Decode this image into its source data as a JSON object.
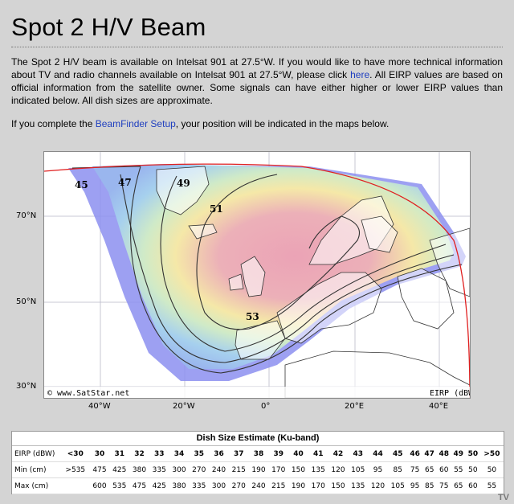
{
  "page": {
    "title": "Spot 2 H/V Beam",
    "intro_1": "The Spot 2 H/V beam is available on Intelsat 901 at 27.5°W. If you would like to have more technical information about TV and radio channels available on Intelsat 901 at 27.5°W, please click ",
    "intro_link": "here",
    "intro_2": ". All EIRP values are based on official information from the satellite owner. Some signals can have either higher or lower EIRP values than indicated below. All dish sizes are approximate.",
    "setup_1": "If you complete the ",
    "setup_link": "BeamFinder Setup",
    "setup_2": ", your position will be indicated in the maps below."
  },
  "map": {
    "copyright": "© www.SatStar.net",
    "legend_unit": "EIRP (dBW)",
    "contours": [
      "45",
      "47",
      "49",
      "51",
      "53"
    ],
    "lat_labels": [
      "70°N",
      "50°N",
      "30°N"
    ],
    "lon_labels": [
      "40°W",
      "20°W",
      "0°",
      "20°E",
      "40°E"
    ],
    "colors": {
      "outer": "#8c8ff0",
      "ring": "#a9c6f0",
      "mid": "#d7ecc8",
      "yellow": "#f6eda8",
      "core": "#e8a8b4",
      "edge": "#e02020"
    }
  },
  "dish_table": {
    "caption": "Dish Size Estimate (Ku-band)",
    "rows": [
      {
        "label": "EIRP (dBW)",
        "cells": [
          "<30",
          "30",
          "31",
          "32",
          "33",
          "34",
          "35",
          "36",
          "37",
          "38",
          "39",
          "40",
          "41",
          "42",
          "43",
          "44",
          "45",
          "46",
          "47",
          "48",
          "49",
          "50",
          ">50"
        ]
      },
      {
        "label": "Min (cm)",
        "cells": [
          ">535",
          "475",
          "425",
          "380",
          "335",
          "300",
          "270",
          "240",
          "215",
          "190",
          "170",
          "150",
          "135",
          "120",
          "105",
          "95",
          "85",
          "75",
          "65",
          "60",
          "55",
          "50",
          "50"
        ]
      },
      {
        "label": "Max (cm)",
        "cells": [
          "",
          "600",
          "535",
          "475",
          "425",
          "380",
          "335",
          "300",
          "270",
          "240",
          "215",
          "190",
          "170",
          "150",
          "135",
          "120",
          "105",
          "95",
          "85",
          "75",
          "65",
          "60",
          "55"
        ]
      }
    ]
  },
  "watermark": "TV"
}
